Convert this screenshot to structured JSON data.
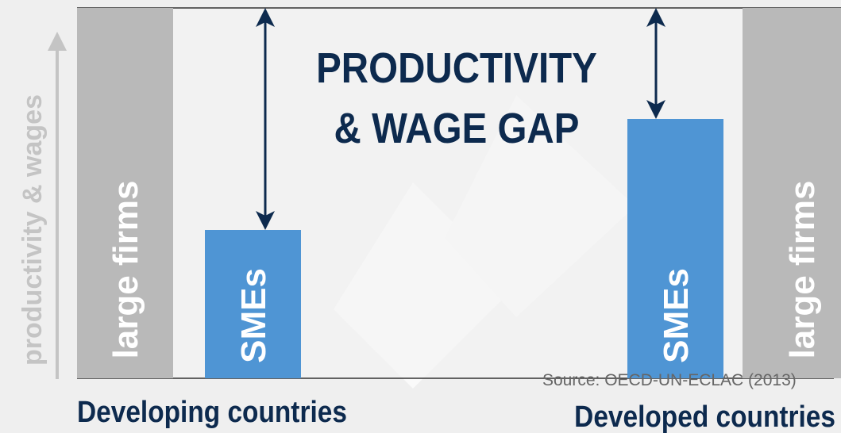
{
  "title": [
    "PRODUCTIVITY",
    "& WAGE GAP"
  ],
  "y_axis_label": "productivity & wages",
  "groups": [
    {
      "label": "Developing countries",
      "bars": [
        "large firms",
        "SMEs"
      ]
    },
    {
      "label": "Developed countries",
      "bars": [
        "SMEs",
        "large firms"
      ]
    }
  ],
  "source": "Source: OECD-UN-ECLAC (2013)"
}
